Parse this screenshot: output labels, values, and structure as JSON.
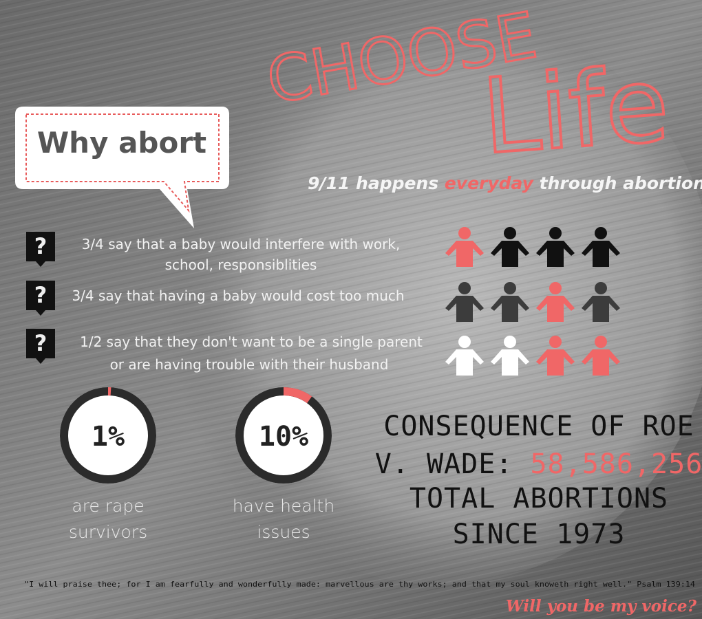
{
  "header": {
    "title_line1": "CHOOSE",
    "title_line2": "Life",
    "subtitle_parts": [
      "9/11 happens ",
      "everyday",
      " through abortion"
    ]
  },
  "callout": "Why abort",
  "reasons": [
    {
      "icon": "?",
      "text_lines": [
        "3/4 say that a baby would interfere with work,",
        "school, responsiblities"
      ]
    },
    {
      "icon": "?",
      "text_lines": [
        "3/4 say that having a baby would cost too much"
      ]
    },
    {
      "icon": "?",
      "text_lines": [
        "1/2 say that they don't want to be a single parent",
        "or are having trouble with their husband"
      ]
    }
  ],
  "stats": [
    {
      "percent": {
        "value": 1,
        "label": "1%"
      },
      "caption_lines": [
        "are rape",
        "survivors"
      ]
    },
    {
      "percent": {
        "value": 10,
        "label": "10%"
      },
      "caption_lines": [
        "have health",
        "issues"
      ]
    }
  ],
  "consequence": {
    "line1": "CONSEQUENCE OF ROE",
    "line2_prefix": "V. WADE: ",
    "total": "58,586,256",
    "line3": "TOTAL ABORTIONS",
    "line4": "SINCE 1973"
  },
  "quote": "\"I will praise thee; for I am fearfully and wonderfully made: marvellous are thy works; and that my soul knoweth right well.\" Psalm 139:14",
  "footer": "Will you be my voice?"
}
